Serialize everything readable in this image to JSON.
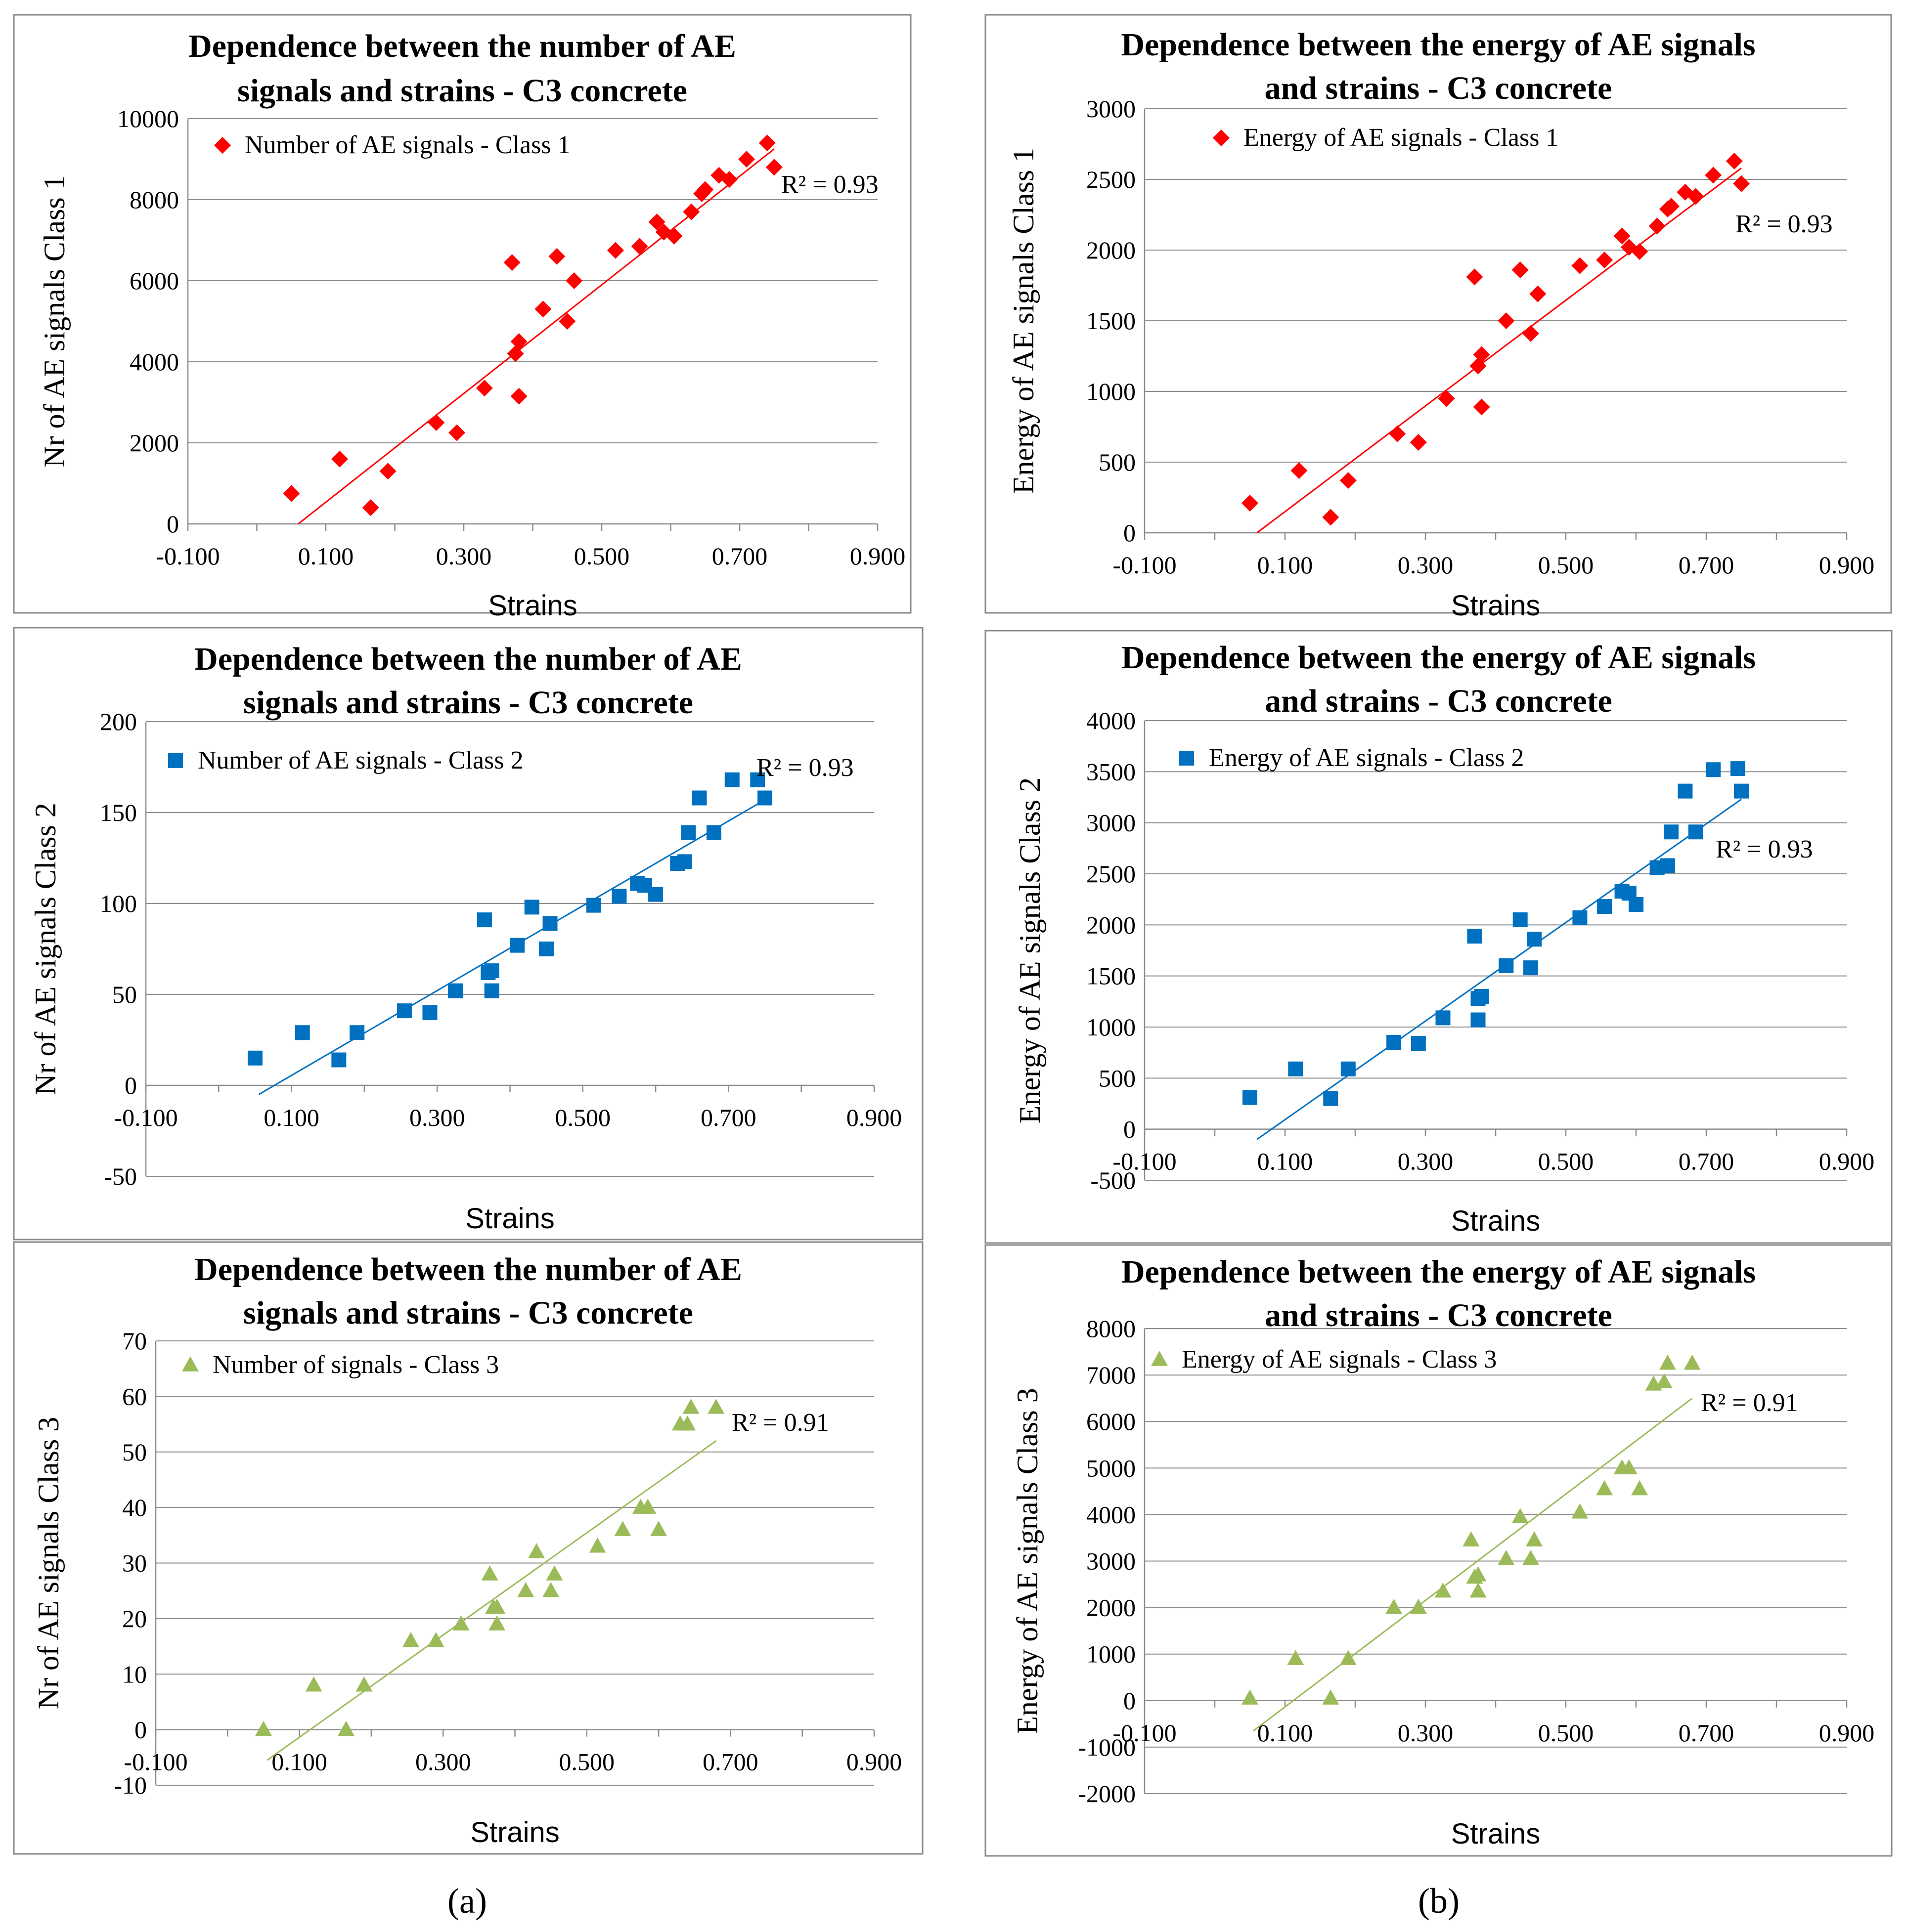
{
  "figure_labels": {
    "a": "(a)",
    "b": "(b)"
  },
  "colors": {
    "class1": "#ff0000",
    "class2": "#0070c0",
    "class3": "#9bbb59"
  },
  "chart_data": [
    {
      "id": "a1",
      "type": "scatter",
      "title": [
        "Dependence between the number of AE",
        "signals and strains - C3 concrete"
      ],
      "xlabel": "Strains",
      "ylabel": "Nr of AE signals Class 1",
      "xlim": [
        -0.1,
        0.9
      ],
      "xticks": [
        -0.1,
        0.1,
        0.3,
        0.5,
        0.7,
        0.9
      ],
      "xtick_labels": [
        "-0.100",
        "0.100",
        "0.300",
        "0.500",
        "0.700",
        "0.900"
      ],
      "ylim": [
        0,
        10000
      ],
      "yticks": [
        0,
        2000,
        4000,
        6000,
        8000,
        10000
      ],
      "ytick_labels": [
        "0",
        "2000",
        "4000",
        "6000",
        "8000",
        "10000"
      ],
      "marker": "diamond",
      "color": "#ff0000",
      "legend": "Number of AE signals - Class 1",
      "r2_label": "R² = 0.93",
      "trendline": [
        [
          0.06,
          0
        ],
        [
          0.75,
          9250
        ]
      ],
      "x": [
        0.05,
        0.12,
        0.165,
        0.19,
        0.26,
        0.29,
        0.33,
        0.37,
        0.375,
        0.38,
        0.38,
        0.415,
        0.435,
        0.45,
        0.46,
        0.52,
        0.555,
        0.58,
        0.59,
        0.605,
        0.63,
        0.645,
        0.65,
        0.67,
        0.685,
        0.71,
        0.74,
        0.75
      ],
      "y": [
        750,
        1600,
        400,
        1300,
        2500,
        2250,
        3350,
        6450,
        4200,
        3150,
        4500,
        5300,
        6600,
        5000,
        6000,
        6750,
        6850,
        7450,
        7200,
        7100,
        7700,
        8150,
        8250,
        8600,
        8500,
        9000,
        9400,
        8800
      ]
    },
    {
      "id": "b1",
      "type": "scatter",
      "title": [
        "Dependence between the energy of AE signals",
        "and strains - C3 concrete"
      ],
      "xlabel": "Strains",
      "ylabel": "Energy of AE signals Class 1",
      "xlim": [
        -0.1,
        0.9
      ],
      "xticks": [
        -0.1,
        0.1,
        0.3,
        0.5,
        0.7,
        0.9
      ],
      "xtick_labels": [
        "-0.100",
        "0.100",
        "0.300",
        "0.500",
        "0.700",
        "0.900"
      ],
      "ylim": [
        0,
        3000
      ],
      "yticks": [
        0,
        500,
        1000,
        1500,
        2000,
        2500,
        3000
      ],
      "ytick_labels": [
        "0",
        "500",
        "1000",
        "1500",
        "2000",
        "2500",
        "3000"
      ],
      "marker": "diamond",
      "color": "#ff0000",
      "legend": "Energy of AE signals - Class 1",
      "r2_label": "R² = 0.93",
      "trendline": [
        [
          0.06,
          0
        ],
        [
          0.75,
          2580
        ]
      ],
      "x": [
        0.05,
        0.12,
        0.165,
        0.19,
        0.26,
        0.29,
        0.33,
        0.37,
        0.375,
        0.38,
        0.38,
        0.415,
        0.435,
        0.45,
        0.46,
        0.52,
        0.555,
        0.58,
        0.59,
        0.605,
        0.63,
        0.645,
        0.65,
        0.67,
        0.685,
        0.71,
        0.74,
        0.75
      ],
      "y": [
        210,
        440,
        110,
        370,
        700,
        640,
        950,
        1810,
        1180,
        890,
        1260,
        1500,
        1860,
        1410,
        1690,
        1890,
        1930,
        2100,
        2020,
        1990,
        2170,
        2290,
        2310,
        2410,
        2380,
        2530,
        2630,
        2470
      ]
    },
    {
      "id": "a2",
      "type": "scatter",
      "title": [
        "Dependence between the number of AE",
        "signals and strains - C3 concrete"
      ],
      "xlabel": "Strains",
      "ylabel": "Nr of AE signals Class 2",
      "xlim": [
        -0.1,
        0.9
      ],
      "xticks": [
        -0.1,
        0.1,
        0.3,
        0.5,
        0.7,
        0.9
      ],
      "xtick_labels": [
        "-0.100",
        "0.100",
        "0.300",
        "0.500",
        "0.700",
        "0.900"
      ],
      "ylim": [
        -50,
        200
      ],
      "yticks": [
        -50,
        0,
        50,
        100,
        150,
        200
      ],
      "ytick_labels": [
        "-50",
        "0",
        "50",
        "100",
        "150",
        "200"
      ],
      "marker": "square",
      "color": "#0070c0",
      "legend": "Number of AE signals - Class 2",
      "r2_label": "R² = 0.93",
      "trendline": [
        [
          0.055,
          -5
        ],
        [
          0.75,
          157
        ]
      ],
      "x": [
        0.05,
        0.115,
        0.165,
        0.19,
        0.255,
        0.29,
        0.325,
        0.365,
        0.37,
        0.375,
        0.375,
        0.41,
        0.43,
        0.45,
        0.455,
        0.515,
        0.55,
        0.575,
        0.585,
        0.6,
        0.63,
        0.64,
        0.645,
        0.66,
        0.68,
        0.705,
        0.74,
        0.75
      ],
      "y": [
        15,
        29,
        14,
        29,
        41,
        40,
        52,
        91,
        62,
        52,
        63,
        77,
        98,
        75,
        89,
        99,
        104,
        111,
        110,
        105,
        122,
        123,
        139,
        158,
        139,
        168,
        168,
        158
      ]
    },
    {
      "id": "b2",
      "type": "scatter",
      "title": [
        "Dependence between the energy of AE signals",
        "and strains - C3 concrete"
      ],
      "xlabel": "Strains",
      "ylabel": "Energy of AE signals Class 2",
      "xlim": [
        -0.1,
        0.9
      ],
      "xticks": [
        -0.1,
        0.1,
        0.3,
        0.5,
        0.7,
        0.9
      ],
      "xtick_labels": [
        "-0.100",
        "0.100",
        "0.300",
        "0.500",
        "0.700",
        "0.900"
      ],
      "ylim": [
        -500,
        4000
      ],
      "yticks": [
        -500,
        0,
        500,
        1000,
        1500,
        2000,
        2500,
        3000,
        3500,
        4000
      ],
      "ytick_labels": [
        "-500",
        "0",
        "500",
        "1000",
        "1500",
        "2000",
        "2500",
        "3000",
        "3500",
        "4000"
      ],
      "marker": "square",
      "color": "#0070c0",
      "legend": "Energy of AE signals - Class 2",
      "r2_label": "R² = 0.93",
      "trendline": [
        [
          0.06,
          -100
        ],
        [
          0.75,
          3230
        ]
      ],
      "x": [
        0.05,
        0.115,
        0.165,
        0.19,
        0.255,
        0.29,
        0.325,
        0.37,
        0.375,
        0.375,
        0.38,
        0.415,
        0.435,
        0.45,
        0.455,
        0.52,
        0.555,
        0.58,
        0.59,
        0.6,
        0.63,
        0.645,
        0.65,
        0.67,
        0.685,
        0.71,
        0.745,
        0.75
      ],
      "y": [
        310,
        590,
        300,
        590,
        850,
        840,
        1090,
        1890,
        1280,
        1070,
        1300,
        1600,
        2050,
        1580,
        1860,
        2070,
        2180,
        2330,
        2310,
        2200,
        2560,
        2580,
        2910,
        3310,
        2910,
        3520,
        3530,
        3310
      ]
    },
    {
      "id": "a3",
      "type": "scatter",
      "title": [
        "Dependence between the number of AE",
        "signals and strains - C3 concrete"
      ],
      "xlabel": "Strains",
      "ylabel": "Nr of AE signals Class 3",
      "xlim": [
        -0.1,
        0.9
      ],
      "xticks": [
        -0.1,
        0.1,
        0.3,
        0.5,
        0.7,
        0.9
      ],
      "xtick_labels": [
        "-0.100",
        "0.100",
        "0.300",
        "0.500",
        "0.700",
        "0.900"
      ],
      "ylim": [
        -10,
        70
      ],
      "yticks": [
        -10,
        0,
        10,
        20,
        30,
        40,
        50,
        60,
        70
      ],
      "ytick_labels": [
        "-10",
        "0",
        "10",
        "20",
        "30",
        "40",
        "50",
        "60",
        "70"
      ],
      "marker": "triangle",
      "color": "#9bbb59",
      "legend": "Number of signals - Class 3",
      "r2_label": "R² = 0.91",
      "trendline": [
        [
          0.055,
          -5.5
        ],
        [
          0.68,
          52
        ]
      ],
      "x": [
        0.05,
        0.12,
        0.165,
        0.19,
        0.255,
        0.29,
        0.325,
        0.365,
        0.37,
        0.375,
        0.375,
        0.415,
        0.43,
        0.45,
        0.455,
        0.515,
        0.55,
        0.575,
        0.585,
        0.6,
        0.63,
        0.64,
        0.645,
        0.68
      ],
      "y": [
        0,
        8,
        0,
        8,
        16,
        16,
        19,
        28,
        22,
        19,
        22,
        25,
        32,
        25,
        28,
        33,
        36,
        40,
        40,
        36,
        55,
        55,
        58,
        58
      ]
    },
    {
      "id": "b3",
      "type": "scatter",
      "title": [
        "Dependence between the energy of AE signals",
        "and strains - C3 concrete"
      ],
      "xlabel": "Strains",
      "ylabel": "Energy of AE signals Class 3",
      "xlim": [
        -0.1,
        0.9
      ],
      "xticks": [
        -0.1,
        0.1,
        0.3,
        0.5,
        0.7,
        0.9
      ],
      "xtick_labels": [
        "-0.100",
        "0.100",
        "0.300",
        "0.500",
        "0.700",
        "0.900"
      ],
      "ylim": [
        -2000,
        8000
      ],
      "yticks": [
        -2000,
        -1000,
        0,
        1000,
        2000,
        3000,
        4000,
        5000,
        6000,
        7000,
        8000
      ],
      "ytick_labels": [
        "-2000",
        "-1000",
        "0",
        "1000",
        "2000",
        "3000",
        "4000",
        "5000",
        "6000",
        "7000",
        "8000"
      ],
      "marker": "triangle",
      "color": "#9bbb59",
      "legend": "Energy of AE signals - Class 3",
      "r2_label": "R² = 0.91",
      "trendline": [
        [
          0.055,
          -650
        ],
        [
          0.68,
          6500
        ]
      ],
      "x": [
        0.05,
        0.115,
        0.165,
        0.19,
        0.255,
        0.29,
        0.325,
        0.365,
        0.37,
        0.375,
        0.375,
        0.415,
        0.435,
        0.45,
        0.455,
        0.52,
        0.555,
        0.58,
        0.59,
        0.605,
        0.625,
        0.64,
        0.645,
        0.68
      ],
      "y": [
        50,
        900,
        50,
        900,
        2000,
        2000,
        2350,
        3450,
        2650,
        2350,
        2700,
        3050,
        3950,
        3050,
        3450,
        4050,
        4550,
        5000,
        5000,
        4550,
        6800,
        6850,
        7250,
        7250
      ]
    }
  ]
}
